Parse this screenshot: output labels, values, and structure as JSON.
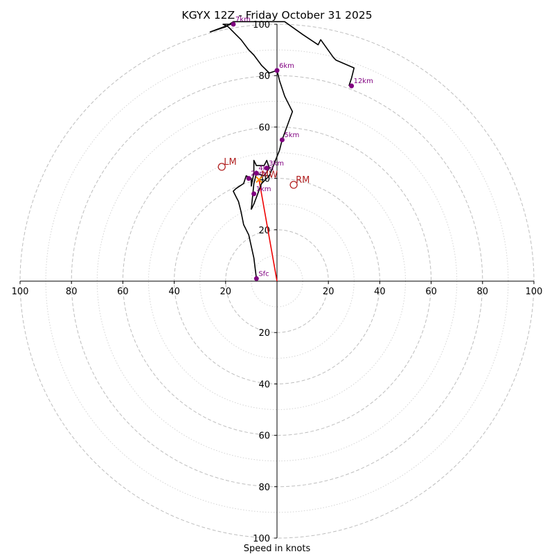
{
  "chart_data": {
    "type": "scatter",
    "title": "KGYX 12Z - Friday October 31 2025",
    "xlabel": "Speed in knots",
    "ylabel": "",
    "xlim": [
      -100,
      100
    ],
    "ylim": [
      -100,
      100
    ],
    "ring_speeds_dashed": [
      20,
      40,
      60,
      80,
      100
    ],
    "ring_speeds_dotted": [
      10,
      30,
      50,
      70,
      90
    ],
    "x_tick_labels": [
      "100",
      "80",
      "60",
      "40",
      "20",
      "20",
      "40",
      "60",
      "80",
      "100"
    ],
    "y_tick_labels_upper": [
      "20",
      "40",
      "60",
      "80",
      "100"
    ],
    "y_tick_labels_lower": [
      "20",
      "40",
      "60",
      "80",
      "100"
    ],
    "series": [
      {
        "name": "hodograph",
        "color": "#000000",
        "points": [
          [
            -8,
            1
          ],
          [
            -9,
            9
          ],
          [
            -11,
            18
          ],
          [
            -13,
            22
          ],
          [
            -14,
            27
          ],
          [
            -15,
            31
          ],
          [
            -16,
            33
          ],
          [
            -17,
            35
          ],
          [
            -16,
            36
          ],
          [
            -13,
            38
          ],
          [
            -12,
            41
          ],
          [
            -10,
            40
          ],
          [
            -10,
            37
          ],
          [
            -9,
            42
          ],
          [
            -9,
            47
          ],
          [
            -8,
            45
          ],
          [
            -5,
            45
          ],
          [
            -4,
            47
          ],
          [
            -3,
            44
          ],
          [
            -5,
            41
          ],
          [
            -8,
            42
          ],
          [
            -9,
            38
          ],
          [
            -10,
            28
          ],
          [
            -9,
            30
          ],
          [
            -6,
            38
          ],
          [
            -4,
            40
          ],
          [
            -3,
            41
          ],
          [
            -1,
            46
          ],
          [
            1,
            51
          ],
          [
            2,
            55
          ],
          [
            6,
            66
          ],
          [
            4,
            70
          ],
          [
            3,
            72
          ],
          [
            1,
            78
          ],
          [
            0,
            82
          ],
          [
            -3,
            81
          ],
          [
            -6,
            84
          ],
          [
            -9,
            88
          ],
          [
            -11,
            90
          ],
          [
            -14,
            94
          ],
          [
            -16,
            96
          ],
          [
            -17,
            97
          ],
          [
            -19,
            99
          ],
          [
            -21,
            100
          ],
          [
            -18,
            100
          ],
          [
            -26,
            97
          ],
          [
            -20,
            99
          ],
          [
            -17,
            101
          ],
          [
            3,
            101
          ],
          [
            10,
            96
          ],
          [
            16,
            92
          ],
          [
            17,
            94
          ],
          [
            22,
            87
          ],
          [
            23,
            86
          ],
          [
            30,
            83
          ],
          [
            29,
            79
          ],
          [
            28,
            76
          ]
        ]
      }
    ],
    "level_markers": [
      {
        "label": "Sfc",
        "u": -8,
        "v": 1
      },
      {
        "label": "1km",
        "u": -9,
        "v": 34
      },
      {
        "label": "2km",
        "u": -11,
        "v": 40
      },
      {
        "label": "3km",
        "u": -4,
        "v": 44
      },
      {
        "label": "4km",
        "u": -8,
        "v": 42
      },
      {
        "label": "5km",
        "u": 2,
        "v": 55
      },
      {
        "label": "6km",
        "u": 0,
        "v": 82
      },
      {
        "label": "7km",
        "u": -17,
        "v": 100
      },
      {
        "label": "12km",
        "u": 29,
        "v": 76
      }
    ],
    "storm_motion": [
      {
        "label": "LM",
        "u": -21.5,
        "v": 44.5
      },
      {
        "label": "RM",
        "u": 6.5,
        "v": 37.5
      },
      {
        "label": "MW",
        "u": -7,
        "v": 39.5
      }
    ],
    "shear_vector": {
      "from": [
        0,
        0
      ],
      "to": [
        -7,
        39.5
      ],
      "color": "#ee0000"
    }
  }
}
